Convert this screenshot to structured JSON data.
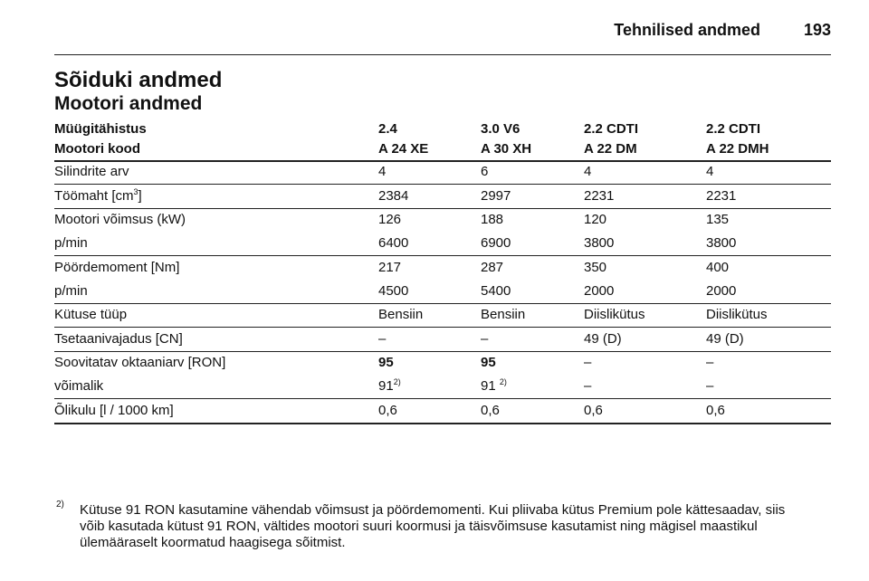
{
  "header": {
    "title": "Tehnilised andmed",
    "page": "193"
  },
  "title": "Sõiduki andmed",
  "subtitle": "Mootori andmed",
  "table": {
    "header": [
      [
        "Müügitähistus",
        "2.4",
        "3.0 V6",
        "2.2 CDTI",
        "2.2 CDTI"
      ],
      [
        "Mootori kood",
        "A 24 XE",
        "A 30 XH",
        "A 22 DM",
        "A 22 DMH"
      ]
    ],
    "groups": [
      [
        [
          "Silindrite arv",
          "4",
          "6",
          "4",
          "4"
        ]
      ],
      [
        [
          {
            "text": "Töömaht [cm",
            "sup": "3",
            "after": "]"
          },
          "2384",
          "2997",
          "2231",
          "2231"
        ]
      ],
      [
        [
          "Mootori võimsus (kW)",
          "126",
          "188",
          "120",
          "135"
        ],
        [
          "p/min",
          "6400",
          "6900",
          "3800",
          "3800"
        ]
      ],
      [
        [
          "Pöördemoment [Nm]",
          "217",
          "287",
          "350",
          "400"
        ],
        [
          "p/min",
          "4500",
          "5400",
          "2000",
          "2000"
        ]
      ],
      [
        [
          "Kütuse tüüp",
          "Bensiin",
          "Bensiin",
          "Diislikütus",
          "Diislikütus"
        ]
      ],
      [
        [
          "Tsetaanivajadus [CN]",
          "–",
          "–",
          "49 (D)",
          "49 (D)"
        ]
      ],
      [
        [
          "Soovitatav oktaaniarv [RON]",
          {
            "text": "95",
            "bold": true
          },
          {
            "text": "95",
            "bold": true
          },
          "–",
          "–"
        ],
        [
          "võimalik",
          {
            "text": "91",
            "sup": "2)"
          },
          {
            "text": "91 ",
            "sup": "2)"
          },
          "–",
          "–"
        ]
      ],
      [
        [
          "Õlikulu [l / 1000 km]",
          "0,6",
          "0,6",
          "0,6",
          "0,6"
        ]
      ]
    ]
  },
  "footnote": {
    "mark": "2)",
    "lines": [
      "Kütuse 91 RON kasutamine vähendab võimsust ja pöördemomenti. Kui pliivaba kütus Premium pole kättesaadav, siis",
      "võib kasutada kütust 91 RON, vältides mootori suuri koormusi ja täisvõimsuse kasutamist ning mägisel maastikul",
      "ülemääraselt koormatud haagisega sõitmist."
    ]
  }
}
